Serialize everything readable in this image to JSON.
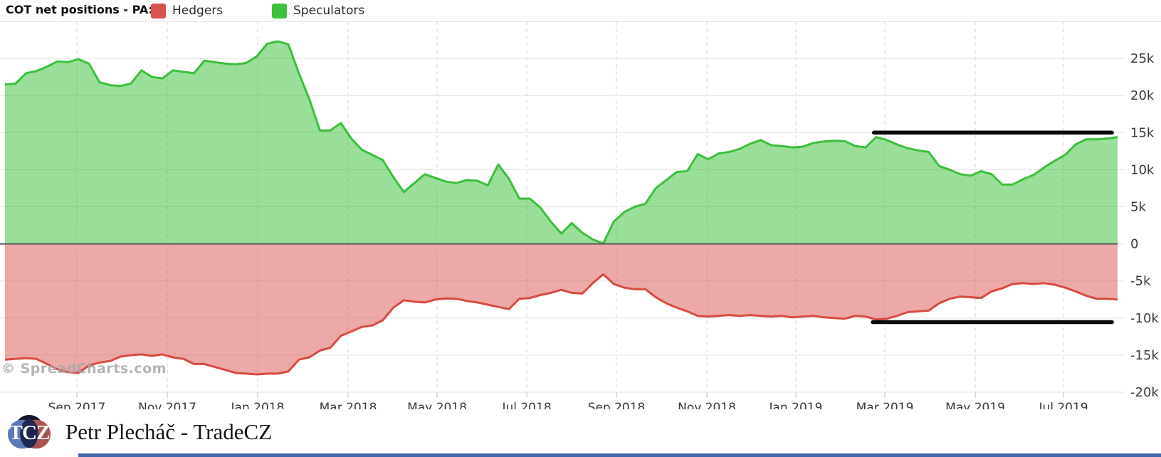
{
  "header": {
    "title": "COT net positions - PA:",
    "legend": [
      {
        "label": "Hedgers",
        "color": "#d9534f"
      },
      {
        "label": "Speculators",
        "color": "#3ec23e"
      }
    ]
  },
  "watermark": "© SpreadCharts.com",
  "footer": {
    "logo_text": "TCZ",
    "brand": "Petr Plecháč - TradeCZ"
  },
  "chart_data": {
    "type": "area",
    "title": "COT net positions - PA",
    "legend_position": "top",
    "grid": true,
    "ylim_k": [
      -20,
      30
    ],
    "values_unit": "k",
    "n_points": 107,
    "y_ticks": [
      {
        "v": 25,
        "label": "25k"
      },
      {
        "v": 20,
        "label": "20k"
      },
      {
        "v": 15,
        "label": "15k"
      },
      {
        "v": 10,
        "label": "10k"
      },
      {
        "v": 5,
        "label": "5k"
      },
      {
        "v": 0,
        "label": "0"
      },
      {
        "v": -5,
        "label": "-5k"
      },
      {
        "v": -10,
        "label": "-10k"
      },
      {
        "v": -15,
        "label": "-15k"
      },
      {
        "v": -20,
        "label": "-20k"
      }
    ],
    "x_ticks": [
      {
        "label": "Sep 2017",
        "f": 0.0646
      },
      {
        "label": "Nov 2017",
        "f": 0.1459
      },
      {
        "label": "Jan 2018",
        "f": 0.2271
      },
      {
        "label": "Mar 2018",
        "f": 0.3084
      },
      {
        "label": "May 2018",
        "f": 0.3884
      },
      {
        "label": "Jul 2018",
        "f": 0.469
      },
      {
        "label": "Sep 2018",
        "f": 0.5496
      },
      {
        "label": "Nov 2018",
        "f": 0.6309
      },
      {
        "label": "Jan 2019",
        "f": 0.7108
      },
      {
        "label": "Mar 2019",
        "f": 0.7908
      },
      {
        "label": "May 2019",
        "f": 0.8721
      },
      {
        "label": "Jul 2019",
        "f": 0.9514
      }
    ],
    "series": [
      {
        "name": "Speculators",
        "line_color": "#3cbf3c",
        "fill_color": "#3cbf3c",
        "fill_opacity": 0.52,
        "values_k": [
          21.5,
          21.6,
          23.0,
          23.3,
          23.9,
          24.6,
          24.5,
          24.9,
          24.3,
          21.8,
          21.4,
          21.3,
          21.6,
          23.4,
          22.5,
          22.3,
          23.4,
          23.2,
          23.0,
          24.7,
          24.5,
          24.3,
          24.2,
          24.4,
          25.3,
          27.0,
          27.3,
          26.9,
          23.0,
          19.5,
          15.3,
          15.3,
          16.3,
          14.2,
          12.7,
          12.0,
          11.3,
          9.0,
          7.0,
          8.2,
          9.4,
          8.9,
          8.4,
          8.2,
          8.6,
          8.5,
          7.9,
          10.7,
          8.8,
          6.1,
          6.1,
          4.9,
          3.0,
          1.4,
          2.8,
          1.5,
          0.6,
          0.05,
          3.0,
          4.3,
          5.0,
          5.4,
          7.5,
          8.6,
          9.7,
          9.8,
          12.1,
          11.4,
          12.2,
          12.4,
          12.8,
          13.5,
          14.0,
          13.3,
          13.2,
          13.0,
          13.1,
          13.6,
          13.8,
          13.9,
          13.85,
          13.2,
          13.0,
          14.4,
          14.0,
          13.4,
          12.9,
          12.6,
          12.4,
          10.5,
          10.0,
          9.4,
          9.2,
          9.8,
          9.4,
          8.0,
          8.0,
          8.7,
          9.3,
          10.3,
          11.2,
          12.0,
          13.4,
          14.1,
          14.1,
          14.2,
          14.4
        ]
      },
      {
        "name": "Hedgers",
        "line_color": "#d84b41",
        "fill_color": "#d9534f",
        "fill_opacity": 0.5,
        "values_k": [
          -15.6,
          -15.5,
          -15.4,
          -15.5,
          -16.2,
          -16.9,
          -17.3,
          -17.4,
          -16.4,
          -16.0,
          -15.8,
          -15.2,
          -15.0,
          -14.9,
          -15.1,
          -14.9,
          -15.3,
          -15.5,
          -16.2,
          -16.2,
          -16.6,
          -17.0,
          -17.4,
          -17.5,
          -17.6,
          -17.5,
          -17.5,
          -17.2,
          -15.6,
          -15.3,
          -14.4,
          -14.0,
          -12.4,
          -11.8,
          -11.2,
          -11.0,
          -10.3,
          -8.6,
          -7.6,
          -7.8,
          -7.9,
          -7.5,
          -7.35,
          -7.4,
          -7.7,
          -7.9,
          -8.2,
          -8.5,
          -8.8,
          -7.4,
          -7.3,
          -6.9,
          -6.6,
          -6.2,
          -6.6,
          -6.7,
          -5.3,
          -4.1,
          -5.4,
          -5.9,
          -6.1,
          -6.1,
          -7.2,
          -8.0,
          -8.6,
          -9.1,
          -9.7,
          -9.8,
          -9.7,
          -9.6,
          -9.7,
          -9.6,
          -9.7,
          -9.8,
          -9.7,
          -9.9,
          -9.8,
          -9.7,
          -9.9,
          -10.0,
          -10.1,
          -9.7,
          -9.8,
          -10.2,
          -10.1,
          -9.7,
          -9.2,
          -9.1,
          -9.0,
          -8.0,
          -7.4,
          -7.1,
          -7.2,
          -7.3,
          -6.4,
          -6.0,
          -5.4,
          -5.3,
          -5.4,
          -5.3,
          -5.5,
          -5.9,
          -6.4,
          -7.0,
          -7.4,
          -7.4,
          -7.5
        ]
      }
    ],
    "annotations": [
      {
        "name": "upper-black-line",
        "type": "hline-segment",
        "value_k": 15.0,
        "x0_f": 0.781,
        "x1_f": 0.995
      },
      {
        "name": "lower-black-line",
        "type": "hline-segment",
        "value_k": -10.55,
        "x0_f": 0.78,
        "x1_f": 0.995
      }
    ]
  }
}
